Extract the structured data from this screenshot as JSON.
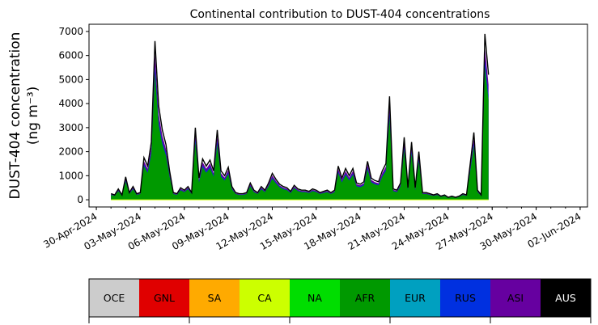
{
  "chart_data": {
    "type": "area",
    "title": "Continental contribution to DUST-404 concentrations",
    "ylabel_line1": "DUST-404 concentration",
    "ylabel_line2": "(ng m⁻³)",
    "ylim": [
      -300,
      7300
    ],
    "y_ticks": [
      0,
      1000,
      2000,
      3000,
      4000,
      5000,
      6000,
      7000
    ],
    "x_range": [
      "2024-04-29T12:00",
      "2024-06-02T12:00"
    ],
    "x_ticks": [
      {
        "date": "2024-04-30",
        "label": "30-Apr-2024"
      },
      {
        "date": "2024-05-03",
        "label": "03-May-2024"
      },
      {
        "date": "2024-05-06",
        "label": "06-May-2024"
      },
      {
        "date": "2024-05-09",
        "label": "09-May-2024"
      },
      {
        "date": "2024-05-12",
        "label": "12-May-2024"
      },
      {
        "date": "2024-05-15",
        "label": "15-May-2024"
      },
      {
        "date": "2024-05-18",
        "label": "18-May-2024"
      },
      {
        "date": "2024-05-21",
        "label": "21-May-2024"
      },
      {
        "date": "2024-05-24",
        "label": "24-May-2024"
      },
      {
        "date": "2024-05-27",
        "label": "27-May-2024"
      },
      {
        "date": "2024-05-30",
        "label": "30-May-2024"
      },
      {
        "date": "2024-06-02",
        "label": "02-Jun-2024"
      }
    ],
    "total_series": [
      [
        "2024-05-01T00:00",
        250
      ],
      [
        "2024-05-01T06:00",
        200
      ],
      [
        "2024-05-01T12:00",
        450
      ],
      [
        "2024-05-01T18:00",
        200
      ],
      [
        "2024-05-02T00:00",
        950
      ],
      [
        "2024-05-02T06:00",
        300
      ],
      [
        "2024-05-02T12:00",
        550
      ],
      [
        "2024-05-02T18:00",
        250
      ],
      [
        "2024-05-03T00:00",
        300
      ],
      [
        "2024-05-03T06:00",
        1750
      ],
      [
        "2024-05-03T12:00",
        1400
      ],
      [
        "2024-05-03T18:00",
        2400
      ],
      [
        "2024-05-04T00:00",
        6600
      ],
      [
        "2024-05-04T06:00",
        3900
      ],
      [
        "2024-05-04T12:00",
        2900
      ],
      [
        "2024-05-04T18:00",
        2300
      ],
      [
        "2024-05-05T00:00",
        1200
      ],
      [
        "2024-05-05T06:00",
        300
      ],
      [
        "2024-05-05T12:00",
        250
      ],
      [
        "2024-05-05T18:00",
        500
      ],
      [
        "2024-05-06T00:00",
        400
      ],
      [
        "2024-05-06T06:00",
        550
      ],
      [
        "2024-05-06T12:00",
        300
      ],
      [
        "2024-05-06T18:00",
        3000
      ],
      [
        "2024-05-07T00:00",
        900
      ],
      [
        "2024-05-07T06:00",
        1700
      ],
      [
        "2024-05-07T12:00",
        1400
      ],
      [
        "2024-05-07T18:00",
        1650
      ],
      [
        "2024-05-08T00:00",
        1200
      ],
      [
        "2024-05-08T06:00",
        2900
      ],
      [
        "2024-05-08T12:00",
        1200
      ],
      [
        "2024-05-08T18:00",
        1000
      ],
      [
        "2024-05-09T00:00",
        1350
      ],
      [
        "2024-05-09T06:00",
        550
      ],
      [
        "2024-05-09T12:00",
        300
      ],
      [
        "2024-05-09T18:00",
        250
      ],
      [
        "2024-05-10T00:00",
        250
      ],
      [
        "2024-05-10T06:00",
        300
      ],
      [
        "2024-05-10T12:00",
        700
      ],
      [
        "2024-05-10T18:00",
        400
      ],
      [
        "2024-05-11T00:00",
        300
      ],
      [
        "2024-05-11T06:00",
        550
      ],
      [
        "2024-05-11T12:00",
        400
      ],
      [
        "2024-05-11T18:00",
        700
      ],
      [
        "2024-05-12T00:00",
        1100
      ],
      [
        "2024-05-12T06:00",
        850
      ],
      [
        "2024-05-12T12:00",
        650
      ],
      [
        "2024-05-12T18:00",
        550
      ],
      [
        "2024-05-13T00:00",
        500
      ],
      [
        "2024-05-13T06:00",
        350
      ],
      [
        "2024-05-13T12:00",
        600
      ],
      [
        "2024-05-13T18:00",
        450
      ],
      [
        "2024-05-14T00:00",
        400
      ],
      [
        "2024-05-14T06:00",
        400
      ],
      [
        "2024-05-14T12:00",
        350
      ],
      [
        "2024-05-14T18:00",
        450
      ],
      [
        "2024-05-15T00:00",
        400
      ],
      [
        "2024-05-15T06:00",
        300
      ],
      [
        "2024-05-15T12:00",
        350
      ],
      [
        "2024-05-15T18:00",
        400
      ],
      [
        "2024-05-16T00:00",
        300
      ],
      [
        "2024-05-16T06:00",
        400
      ],
      [
        "2024-05-16T12:00",
        1400
      ],
      [
        "2024-05-16T18:00",
        900
      ],
      [
        "2024-05-17T00:00",
        1300
      ],
      [
        "2024-05-17T06:00",
        1000
      ],
      [
        "2024-05-17T12:00",
        1300
      ],
      [
        "2024-05-17T18:00",
        700
      ],
      [
        "2024-05-18T00:00",
        650
      ],
      [
        "2024-05-18T06:00",
        750
      ],
      [
        "2024-05-18T12:00",
        1600
      ],
      [
        "2024-05-18T18:00",
        900
      ],
      [
        "2024-05-19T00:00",
        800
      ],
      [
        "2024-05-19T06:00",
        750
      ],
      [
        "2024-05-19T12:00",
        1200
      ],
      [
        "2024-05-19T18:00",
        1500
      ],
      [
        "2024-05-20T00:00",
        4300
      ],
      [
        "2024-05-20T06:00",
        450
      ],
      [
        "2024-05-20T12:00",
        400
      ],
      [
        "2024-05-20T18:00",
        700
      ],
      [
        "2024-05-21T00:00",
        2600
      ],
      [
        "2024-05-21T06:00",
        500
      ],
      [
        "2024-05-21T12:00",
        2400
      ],
      [
        "2024-05-21T18:00",
        500
      ],
      [
        "2024-05-22T00:00",
        2000
      ],
      [
        "2024-05-22T06:00",
        300
      ],
      [
        "2024-05-22T12:00",
        300
      ],
      [
        "2024-05-22T18:00",
        250
      ],
      [
        "2024-05-23T00:00",
        200
      ],
      [
        "2024-05-23T06:00",
        250
      ],
      [
        "2024-05-23T12:00",
        150
      ],
      [
        "2024-05-23T18:00",
        200
      ],
      [
        "2024-05-24T00:00",
        100
      ],
      [
        "2024-05-24T06:00",
        150
      ],
      [
        "2024-05-24T12:00",
        100
      ],
      [
        "2024-05-24T18:00",
        150
      ],
      [
        "2024-05-25T00:00",
        250
      ],
      [
        "2024-05-25T06:00",
        200
      ],
      [
        "2024-05-25T12:00",
        1500
      ],
      [
        "2024-05-25T18:00",
        2800
      ],
      [
        "2024-05-26T00:00",
        400
      ],
      [
        "2024-05-26T06:00",
        200
      ],
      [
        "2024-05-26T12:00",
        6900
      ],
      [
        "2024-05-26T18:00",
        5200
      ]
    ],
    "component_series": [
      {
        "color": "#6600a0",
        "fraction": 0.92
      },
      {
        "color": "#0030e0",
        "fraction": 0.84
      },
      {
        "color": "#009900",
        "fraction": 0.8
      }
    ],
    "line_color": "#000000"
  },
  "legend": {
    "items": [
      {
        "label": "OCE",
        "color": "#cccccc",
        "text_color": "#000000"
      },
      {
        "label": "GNL",
        "color": "#e00000",
        "text_color": "#000000"
      },
      {
        "label": "SA",
        "color": "#ffaa00",
        "text_color": "#000000"
      },
      {
        "label": "CA",
        "color": "#ccff00",
        "text_color": "#000000"
      },
      {
        "label": "NA",
        "color": "#00dd00",
        "text_color": "#000000"
      },
      {
        "label": "AFR",
        "color": "#009900",
        "text_color": "#000000"
      },
      {
        "label": "EUR",
        "color": "#00a0c0",
        "text_color": "#000000"
      },
      {
        "label": "RUS",
        "color": "#0030e0",
        "text_color": "#000000"
      },
      {
        "label": "ASI",
        "color": "#6600a0",
        "text_color": "#000000"
      },
      {
        "label": "AUS",
        "color": "#000000",
        "text_color": "#ffffff"
      }
    ]
  }
}
